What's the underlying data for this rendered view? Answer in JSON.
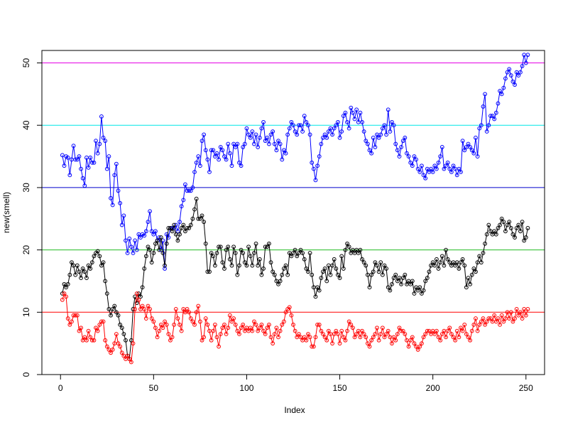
{
  "chart_data": {
    "type": "line",
    "x_label": "Index",
    "y_label": "new(smell)",
    "xlim": [
      -10,
      260
    ],
    "xticks": [
      0,
      50,
      100,
      150,
      200,
      250
    ],
    "ylim": [
      0,
      52
    ],
    "yticks": [
      0,
      10,
      20,
      30,
      40,
      50
    ],
    "hlines": [
      {
        "value": 10,
        "color": "#ff0000"
      },
      {
        "value": 20,
        "color": "#22bb22"
      },
      {
        "value": 30,
        "color": "#0000cc"
      },
      {
        "value": 40,
        "color": "#00e5e5"
      },
      {
        "value": 50,
        "color": "#e500e5"
      }
    ],
    "series": [
      {
        "color": "#0000ff",
        "values": [
          35.2,
          33.5,
          35,
          34.8,
          32,
          34.5,
          36.7,
          34.5,
          34.5,
          35,
          33,
          31.5,
          30.3,
          34.8,
          33.2,
          34.8,
          34,
          34,
          37.5,
          35.5,
          37,
          41.4,
          38,
          37.5,
          33,
          35,
          28.3,
          27.2,
          32,
          33.8,
          29.5,
          27.5,
          24,
          25.5,
          21.5,
          19.5,
          21.8,
          20.5,
          19.5,
          21.5,
          20,
          22.5,
          22,
          22.5,
          22.3,
          23,
          24.5,
          26.2,
          23,
          22.5,
          23,
          21.5,
          22,
          20,
          21.5,
          17,
          22.5,
          22,
          23.5,
          23.5,
          23.5,
          24,
          23,
          24.5,
          27,
          28,
          30.5,
          29.5,
          29.5,
          29.5,
          30,
          32.5,
          34,
          35,
          33.5,
          37.5,
          38.5,
          36,
          34.5,
          32.5,
          36,
          36,
          35,
          35.5,
          34.5,
          36.5,
          36,
          35,
          34.5,
          37,
          35.5,
          33.5,
          37,
          36.5,
          37,
          34,
          33.5,
          36.5,
          37,
          39.5,
          38.5,
          38,
          39,
          37,
          38.5,
          36.5,
          38,
          39.5,
          40.5,
          37.5,
          38,
          37,
          38.5,
          39,
          37,
          36,
          37.5,
          37,
          34.5,
          36,
          35.5,
          38.5,
          39.5,
          40.5,
          40,
          39,
          38.5,
          40,
          40,
          39,
          41.5,
          40.5,
          40,
          38.5,
          34,
          33,
          31.2,
          33.5,
          35,
          37,
          38,
          38.5,
          38,
          39,
          39.5,
          38.5,
          39.5,
          40,
          40.5,
          38,
          39,
          41.5,
          42,
          40.5,
          39.5,
          42.8,
          42,
          41,
          42.5,
          40.5,
          42,
          40.5,
          39,
          37.5,
          37,
          36,
          35.5,
          38,
          36.5,
          38.5,
          38,
          38.5,
          39.5,
          40,
          38.5,
          42.5,
          39,
          40.5,
          40,
          37,
          36,
          35,
          36.5,
          37.5,
          38,
          35.5,
          35,
          34,
          33.5,
          35,
          34.5,
          33,
          32.5,
          33.5,
          32,
          31.5,
          33,
          32.5,
          33,
          32.5,
          33.5,
          33,
          34,
          35,
          36.5,
          33,
          33.5,
          34,
          33,
          32.5,
          33.5,
          33,
          32,
          33,
          32.5,
          37.5,
          36,
          36.5,
          37,
          36.5,
          36,
          35.5,
          38,
          35,
          39.5,
          40,
          43,
          45,
          39,
          40,
          41.5,
          41.5,
          41,
          42,
          43.5,
          45.5,
          45,
          46,
          47.5,
          48.5,
          49,
          48,
          47,
          46.5,
          48.5,
          48,
          48.5,
          49.5,
          51.3,
          50,
          51.3
        ]
      },
      {
        "color": "#000000",
        "values": [
          13,
          14.5,
          14,
          14.5,
          16,
          18,
          17.5,
          16,
          17.5,
          16.5,
          15.5,
          17,
          16.5,
          15.5,
          17.5,
          17,
          18,
          19,
          19.5,
          19.8,
          19,
          17.5,
          18,
          15,
          13,
          10.5,
          9.5,
          10.5,
          11,
          10,
          9.5,
          8,
          7.5,
          6.5,
          5.5,
          3,
          2.5,
          5.5,
          10.5,
          12.5,
          11.5,
          13,
          12.5,
          14,
          17,
          19,
          20.5,
          20,
          18,
          19.5,
          21,
          21.5,
          20,
          22,
          19.5,
          17.5,
          21,
          23.5,
          23.5,
          23,
          24,
          22.5,
          21.5,
          22.5,
          23.5,
          24,
          23,
          23.5,
          23.5,
          24,
          25,
          26.5,
          28.2,
          25,
          25,
          25.5,
          24.5,
          21,
          16.5,
          16.5,
          19.5,
          19,
          17.5,
          19.5,
          20.5,
          20.5,
          18,
          17,
          20,
          20.5,
          18.5,
          17.5,
          20.5,
          19.5,
          16,
          17.5,
          20,
          19.5,
          18,
          17.5,
          20.5,
          19,
          17.5,
          19.5,
          21,
          17.5,
          18.5,
          16,
          17,
          20.5,
          20.5,
          21,
          18,
          16.5,
          16,
          15,
          14.5,
          15,
          16,
          17,
          17.5,
          16,
          19.5,
          19,
          19.5,
          20,
          19,
          19.5,
          20,
          19.5,
          18.5,
          17,
          16.5,
          19.5,
          16,
          14,
          12.5,
          14,
          13.5,
          15.5,
          16.5,
          17,
          15,
          17.5,
          16,
          17.5,
          18.5,
          17,
          16,
          15.5,
          19,
          17,
          20,
          21,
          20.5,
          19.5,
          20,
          19.5,
          20,
          19.5,
          20,
          18.5,
          18,
          17.5,
          16,
          14,
          16,
          16.5,
          18,
          17.5,
          16.5,
          18,
          16,
          17.5,
          17,
          14,
          13.5,
          14.5,
          15.5,
          16,
          15,
          15.5,
          14.5,
          15.5,
          16,
          14.5,
          15,
          14.5,
          15,
          13,
          14,
          13.5,
          14,
          13,
          13.5,
          15,
          15.5,
          16.5,
          17.5,
          18,
          17.5,
          18.5,
          17,
          18,
          19,
          17.5,
          20,
          18.5,
          18,
          17.5,
          18,
          17.5,
          18,
          17,
          18,
          18.5,
          17.5,
          14,
          15.5,
          14.5,
          16,
          17,
          16.5,
          18,
          19,
          18,
          19.5,
          21,
          22.5,
          24,
          23,
          22.5,
          23,
          22.5,
          23.5,
          24,
          25,
          24.5,
          23,
          24,
          24.5,
          23.5,
          22.5,
          22,
          23.5,
          24,
          23,
          24.5,
          21.5,
          22,
          23.5
        ]
      },
      {
        "color": "#ff0000",
        "values": [
          12,
          13,
          12.5,
          9,
          8,
          8.5,
          9.5,
          9.5,
          9.5,
          7,
          7.5,
          5.5,
          6,
          5.5,
          7,
          6,
          5.5,
          5.5,
          7.5,
          7,
          8,
          8.5,
          8.5,
          5.5,
          4.5,
          4,
          3.5,
          4,
          5,
          6.5,
          5,
          4.5,
          3.5,
          3,
          2.5,
          3,
          2.5,
          2,
          5,
          10.5,
          13,
          12,
          10.5,
          11,
          10.5,
          9,
          11,
          10.5,
          9,
          8.5,
          7.5,
          6,
          7,
          8,
          7.5,
          8.5,
          8,
          6.5,
          5.5,
          6,
          8,
          10.5,
          9,
          8,
          7,
          10.5,
          10,
          10.5,
          10,
          9,
          8.5,
          8,
          10,
          11,
          8.5,
          5.5,
          6,
          9,
          8,
          7,
          5.5,
          7,
          8,
          6,
          4.5,
          6.5,
          7.5,
          8,
          6.5,
          7.5,
          9.5,
          8.5,
          9,
          8,
          7,
          6.5,
          7.5,
          8,
          7,
          7.5,
          7,
          7.5,
          7,
          8.5,
          8,
          7,
          7.5,
          8,
          7,
          6.5,
          7.5,
          8,
          6,
          5,
          6.5,
          7.5,
          6,
          7,
          8,
          8.5,
          10,
          10.5,
          10.8,
          9.5,
          8,
          7,
          6,
          6.5,
          6,
          5.5,
          6,
          5.5,
          6.5,
          6,
          4.5,
          4.5,
          6,
          8,
          8,
          7,
          6.5,
          6,
          5.5,
          7,
          6.5,
          5,
          6.5,
          7,
          6.5,
          5,
          7,
          6,
          5.5,
          7,
          8.5,
          8,
          7.5,
          6,
          6.5,
          7,
          6,
          7,
          6.5,
          6,
          5,
          4.5,
          5.5,
          6,
          6.5,
          7.5,
          5.5,
          6.5,
          7.5,
          6,
          6.5,
          7,
          6,
          5,
          6,
          5.5,
          6.5,
          7.5,
          7,
          7,
          6.5,
          5.5,
          4.5,
          5.5,
          6,
          5,
          4.5,
          4,
          4.5,
          5,
          6,
          6.5,
          7,
          7,
          6.5,
          7,
          6.5,
          7,
          6,
          5.5,
          6.5,
          7,
          6,
          7,
          7.5,
          6.5,
          6,
          5.5,
          7,
          6,
          7.5,
          7,
          8,
          6.5,
          6,
          5.5,
          7,
          8,
          9,
          7,
          8,
          8.5,
          9,
          8,
          8.5,
          9,
          9,
          8.5,
          9.5,
          8.5,
          9,
          8,
          9.5,
          8.5,
          9,
          10,
          9,
          10,
          8.5,
          9,
          10.5,
          9.5,
          10,
          9,
          10.5,
          9.5,
          10.5
        ]
      }
    ]
  }
}
